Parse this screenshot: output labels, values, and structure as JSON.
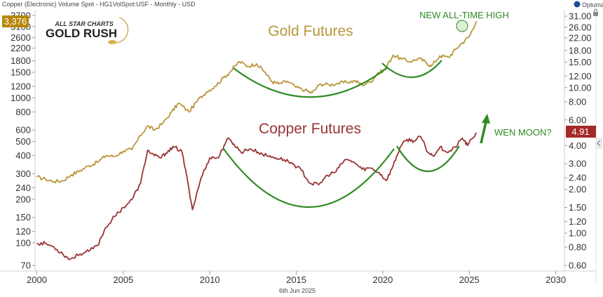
{
  "header": {
    "instrument": "Copper (Electronic) Volume Spot - HG1VolSpot:USF - Monthly - USD",
    "date_stamp": "6th Jun 2025",
    "brand": "Optuma"
  },
  "logo": {
    "line1": "ALL STAR CHARTS",
    "line2": "GOLD RUSH"
  },
  "badges": {
    "gold": {
      "text": "3,376",
      "color": "#b8860b"
    },
    "copper": {
      "text": "4.91",
      "color": "#a52a2a"
    }
  },
  "annotations": {
    "gold_label": "Gold Futures",
    "copper_label": "Copper Futures",
    "ath": "NEW ALL-TIME HIGH",
    "moon": "WEN MOON?"
  },
  "colors": {
    "gold": "#b8963a",
    "copper": "#9a3434",
    "annotation": "#2e8b22"
  },
  "chart_data": {
    "type": "line",
    "x_ticks": [
      "2000",
      "2005",
      "2010",
      "2015",
      "2020",
      "2025",
      "2030"
    ],
    "xlim": [
      1999.9,
      2030.5
    ],
    "left_axis": {
      "scale": "log",
      "ticks": [
        "70",
        "100",
        "120",
        "150",
        "200",
        "240",
        "300",
        "400",
        "500",
        "600",
        "800",
        "1000",
        "1200",
        "1500",
        "1800",
        "2200",
        "2600",
        "3100",
        "3700"
      ],
      "values": [
        70,
        100,
        120,
        150,
        200,
        240,
        300,
        400,
        500,
        600,
        800,
        1000,
        1200,
        1500,
        1800,
        2200,
        2600,
        3100,
        3700
      ]
    },
    "right_axis": {
      "scale": "log",
      "ticks": [
        "0.60",
        "0.80",
        "1.00",
        "1.20",
        "1.50",
        "2.00",
        "2.40",
        "3.00",
        "4.00",
        "6.00",
        "8.00",
        "10.00",
        "12.00",
        "15.00",
        "18.00",
        "22.00",
        "26.00",
        "31.00"
      ],
      "values": [
        0.6,
        0.8,
        1.0,
        1.2,
        1.5,
        2.0,
        2.4,
        3.0,
        4.0,
        6.0,
        8.0,
        10.0,
        12.0,
        15.0,
        18.0,
        22.0,
        26.0,
        31.0
      ]
    },
    "series": [
      {
        "name": "Gold Futures",
        "axis": "left",
        "x": [
          2000.0,
          2000.5,
          2001.0,
          2001.5,
          2002.0,
          2002.5,
          2003.0,
          2003.5,
          2004.0,
          2004.5,
          2005.0,
          2005.5,
          2006.0,
          2006.4,
          2006.8,
          2007.3,
          2007.8,
          2008.2,
          2008.8,
          2009.3,
          2009.8,
          2010.3,
          2010.8,
          2011.2,
          2011.7,
          2012.2,
          2012.7,
          2013.2,
          2013.6,
          2014.0,
          2014.5,
          2015.0,
          2015.5,
          2015.9,
          2016.4,
          2016.9,
          2017.4,
          2017.9,
          2018.4,
          2018.8,
          2019.3,
          2019.7,
          2020.1,
          2020.6,
          2021.1,
          2021.6,
          2022.1,
          2022.5,
          2022.8,
          2023.3,
          2023.8,
          2024.2,
          2024.6,
          2025.0,
          2025.4
        ],
        "values": [
          285,
          275,
          265,
          268,
          295,
          315,
          340,
          360,
          400,
          395,
          430,
          440,
          550,
          640,
          600,
          670,
          800,
          920,
          800,
          960,
          1100,
          1200,
          1380,
          1520,
          1780,
          1650,
          1720,
          1500,
          1290,
          1250,
          1300,
          1180,
          1130,
          1080,
          1250,
          1230,
          1260,
          1280,
          1310,
          1230,
          1290,
          1480,
          1560,
          1970,
          1850,
          1780,
          1870,
          1760,
          1650,
          1950,
          1900,
          2150,
          2400,
          2650,
          3376
        ]
      },
      {
        "name": "Copper Futures",
        "axis": "right",
        "x": [
          2000.0,
          2000.5,
          2001.0,
          2001.5,
          2001.9,
          2002.5,
          2003.0,
          2003.5,
          2004.0,
          2004.5,
          2005.0,
          2005.5,
          2006.0,
          2006.4,
          2006.8,
          2007.2,
          2007.6,
          2008.0,
          2008.4,
          2008.8,
          2009.0,
          2009.5,
          2010.0,
          2010.5,
          2011.0,
          2011.4,
          2011.8,
          2012.3,
          2012.8,
          2013.3,
          2013.8,
          2014.3,
          2014.8,
          2015.3,
          2015.8,
          2016.3,
          2016.8,
          2017.3,
          2017.8,
          2018.3,
          2018.8,
          2019.3,
          2019.8,
          2020.2,
          2020.6,
          2021.0,
          2021.4,
          2021.8,
          2022.2,
          2022.6,
          2022.9,
          2023.3,
          2023.8,
          2024.2,
          2024.6,
          2024.9,
          2025.4
        ],
        "values": [
          0.85,
          0.85,
          0.8,
          0.72,
          0.66,
          0.72,
          0.75,
          0.82,
          1.1,
          1.3,
          1.5,
          1.7,
          2.2,
          3.7,
          3.4,
          3.3,
          3.7,
          3.9,
          3.6,
          2.0,
          1.45,
          2.4,
          3.3,
          3.3,
          4.45,
          4.1,
          3.6,
          3.8,
          3.6,
          3.4,
          3.3,
          3.2,
          3.0,
          2.7,
          2.2,
          2.15,
          2.5,
          2.65,
          3.2,
          3.1,
          2.75,
          2.8,
          2.6,
          2.3,
          2.9,
          3.9,
          4.4,
          4.3,
          4.6,
          3.6,
          3.4,
          3.9,
          3.6,
          3.9,
          4.5,
          4.0,
          4.91
        ]
      }
    ],
    "grid": false,
    "legend": "none"
  }
}
